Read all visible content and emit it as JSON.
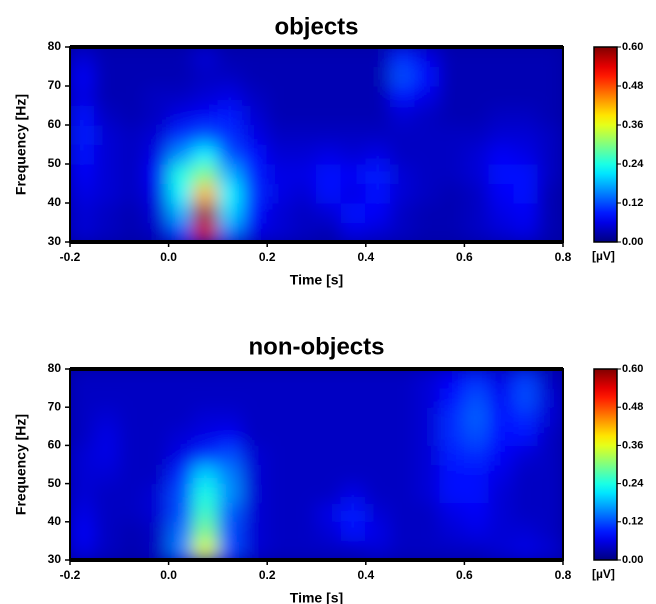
{
  "chart_data": [
    {
      "type": "heatmap",
      "title": "objects",
      "xlabel": "Time [s]",
      "ylabel": "Frequency [Hz]",
      "colormap": "jet",
      "x": [
        -0.175,
        -0.125,
        -0.075,
        -0.025,
        0.025,
        0.075,
        0.125,
        0.175,
        0.225,
        0.275,
        0.325,
        0.375,
        0.425,
        0.475,
        0.525,
        0.575,
        0.625,
        0.675,
        0.725,
        0.775
      ],
      "y": [
        32.5,
        37.5,
        42.5,
        47.5,
        52.5,
        57.5,
        62.5,
        67.5,
        72.5,
        77.5
      ],
      "z": [
        [
          0.05,
          0.04,
          0.03,
          0.04,
          0.12,
          0.55,
          0.15,
          0.06,
          0.05,
          0.04,
          0.03,
          0.06,
          0.05,
          0.04,
          0.03,
          0.03,
          0.04,
          0.05,
          0.06,
          0.03
        ],
        [
          0.05,
          0.04,
          0.03,
          0.05,
          0.18,
          0.58,
          0.2,
          0.08,
          0.05,
          0.04,
          0.05,
          0.08,
          0.07,
          0.04,
          0.03,
          0.03,
          0.04,
          0.06,
          0.07,
          0.03
        ],
        [
          0.06,
          0.05,
          0.04,
          0.06,
          0.22,
          0.42,
          0.22,
          0.1,
          0.06,
          0.05,
          0.08,
          0.06,
          0.08,
          0.05,
          0.04,
          0.03,
          0.04,
          0.07,
          0.08,
          0.03
        ],
        [
          0.07,
          0.05,
          0.04,
          0.07,
          0.24,
          0.3,
          0.18,
          0.09,
          0.06,
          0.06,
          0.08,
          0.07,
          0.09,
          0.05,
          0.04,
          0.04,
          0.05,
          0.08,
          0.08,
          0.04
        ],
        [
          0.08,
          0.05,
          0.04,
          0.06,
          0.16,
          0.22,
          0.12,
          0.08,
          0.05,
          0.05,
          0.06,
          0.05,
          0.06,
          0.04,
          0.04,
          0.04,
          0.05,
          0.07,
          0.06,
          0.04
        ],
        [
          0.09,
          0.05,
          0.04,
          0.05,
          0.1,
          0.12,
          0.1,
          0.06,
          0.04,
          0.04,
          0.04,
          0.04,
          0.04,
          0.04,
          0.04,
          0.04,
          0.04,
          0.05,
          0.05,
          0.04
        ],
        [
          0.08,
          0.04,
          0.03,
          0.04,
          0.06,
          0.07,
          0.09,
          0.05,
          0.03,
          0.03,
          0.03,
          0.03,
          0.03,
          0.05,
          0.04,
          0.03,
          0.03,
          0.04,
          0.04,
          0.03
        ],
        [
          0.06,
          0.03,
          0.03,
          0.04,
          0.04,
          0.05,
          0.06,
          0.04,
          0.03,
          0.03,
          0.03,
          0.03,
          0.03,
          0.08,
          0.06,
          0.03,
          0.03,
          0.03,
          0.03,
          0.03
        ],
        [
          0.07,
          0.03,
          0.03,
          0.03,
          0.03,
          0.04,
          0.04,
          0.03,
          0.03,
          0.03,
          0.03,
          0.03,
          0.03,
          0.12,
          0.08,
          0.03,
          0.03,
          0.03,
          0.03,
          0.03
        ],
        [
          0.05,
          0.03,
          0.03,
          0.03,
          0.03,
          0.05,
          0.03,
          0.03,
          0.03,
          0.03,
          0.03,
          0.03,
          0.03,
          0.1,
          0.06,
          0.03,
          0.03,
          0.03,
          0.03,
          0.03
        ]
      ],
      "xlim": [
        -0.2,
        0.8
      ],
      "ylim": [
        30,
        80
      ],
      "xticks": [
        -0.2,
        {
          "value": 0,
          "label": "0.0"
        },
        0.2,
        0.4,
        0.6,
        0.8
      ],
      "yticks": [
        30,
        40,
        50,
        60,
        70,
        80
      ],
      "clim": [
        0,
        0.6
      ],
      "cticks": [
        {
          "value": 0,
          "label": "0.00"
        },
        0.12,
        0.24,
        0.36,
        0.48,
        {
          "value": 0.6,
          "label": "0.60"
        }
      ],
      "colorbar_label": "[µV]"
    },
    {
      "type": "heatmap",
      "title": "non-objects",
      "xlabel": "Time [s]",
      "ylabel": "Frequency [Hz]",
      "colormap": "jet",
      "x": [
        -0.175,
        -0.125,
        -0.075,
        -0.025,
        0.025,
        0.075,
        0.125,
        0.175,
        0.225,
        0.275,
        0.325,
        0.375,
        0.425,
        0.475,
        0.525,
        0.575,
        0.625,
        0.675,
        0.725,
        0.775
      ],
      "y": [
        32.5,
        37.5,
        42.5,
        47.5,
        52.5,
        57.5,
        62.5,
        67.5,
        72.5,
        77.5
      ],
      "z": [
        [
          0.06,
          0.04,
          0.03,
          0.04,
          0.15,
          0.36,
          0.12,
          0.05,
          0.04,
          0.04,
          0.04,
          0.04,
          0.05,
          0.04,
          0.04,
          0.04,
          0.04,
          0.05,
          0.06,
          0.05
        ],
        [
          0.07,
          0.04,
          0.03,
          0.04,
          0.14,
          0.3,
          0.12,
          0.05,
          0.04,
          0.04,
          0.05,
          0.08,
          0.06,
          0.04,
          0.04,
          0.05,
          0.06,
          0.05,
          0.05,
          0.04
        ],
        [
          0.06,
          0.04,
          0.04,
          0.05,
          0.12,
          0.26,
          0.13,
          0.05,
          0.04,
          0.04,
          0.06,
          0.09,
          0.05,
          0.04,
          0.04,
          0.06,
          0.07,
          0.05,
          0.04,
          0.04
        ],
        [
          0.05,
          0.04,
          0.04,
          0.05,
          0.12,
          0.24,
          0.16,
          0.05,
          0.04,
          0.04,
          0.04,
          0.06,
          0.04,
          0.04,
          0.05,
          0.08,
          0.08,
          0.05,
          0.04,
          0.04
        ],
        [
          0.05,
          0.05,
          0.04,
          0.04,
          0.1,
          0.2,
          0.15,
          0.05,
          0.04,
          0.04,
          0.04,
          0.04,
          0.04,
          0.04,
          0.05,
          0.08,
          0.08,
          0.06,
          0.04,
          0.04
        ],
        [
          0.05,
          0.06,
          0.04,
          0.04,
          0.06,
          0.1,
          0.12,
          0.05,
          0.04,
          0.04,
          0.04,
          0.04,
          0.04,
          0.04,
          0.05,
          0.09,
          0.1,
          0.07,
          0.05,
          0.04
        ],
        [
          0.04,
          0.06,
          0.04,
          0.04,
          0.05,
          0.06,
          0.07,
          0.04,
          0.04,
          0.04,
          0.04,
          0.04,
          0.04,
          0.04,
          0.05,
          0.1,
          0.12,
          0.08,
          0.08,
          0.04
        ],
        [
          0.04,
          0.05,
          0.04,
          0.04,
          0.04,
          0.05,
          0.05,
          0.04,
          0.04,
          0.04,
          0.04,
          0.04,
          0.04,
          0.04,
          0.05,
          0.1,
          0.13,
          0.08,
          0.1,
          0.05
        ],
        [
          0.04,
          0.04,
          0.04,
          0.04,
          0.04,
          0.04,
          0.04,
          0.04,
          0.04,
          0.04,
          0.04,
          0.04,
          0.04,
          0.04,
          0.05,
          0.08,
          0.12,
          0.07,
          0.12,
          0.05
        ],
        [
          0.04,
          0.04,
          0.04,
          0.04,
          0.04,
          0.04,
          0.04,
          0.04,
          0.04,
          0.04,
          0.04,
          0.04,
          0.04,
          0.04,
          0.05,
          0.07,
          0.1,
          0.06,
          0.11,
          0.04
        ]
      ],
      "xlim": [
        -0.2,
        0.8
      ],
      "ylim": [
        30,
        80
      ],
      "xticks": [
        -0.2,
        {
          "value": 0,
          "label": "0.0"
        },
        0.2,
        0.4,
        0.6,
        0.8
      ],
      "yticks": [
        30,
        40,
        50,
        60,
        70,
        80
      ],
      "clim": [
        0,
        0.6
      ],
      "cticks": [
        {
          "value": 0,
          "label": "0.00"
        },
        0.12,
        0.24,
        0.36,
        0.48,
        {
          "value": 0.6,
          "label": "0.60"
        }
      ],
      "colorbar_label": "[µV]"
    }
  ]
}
